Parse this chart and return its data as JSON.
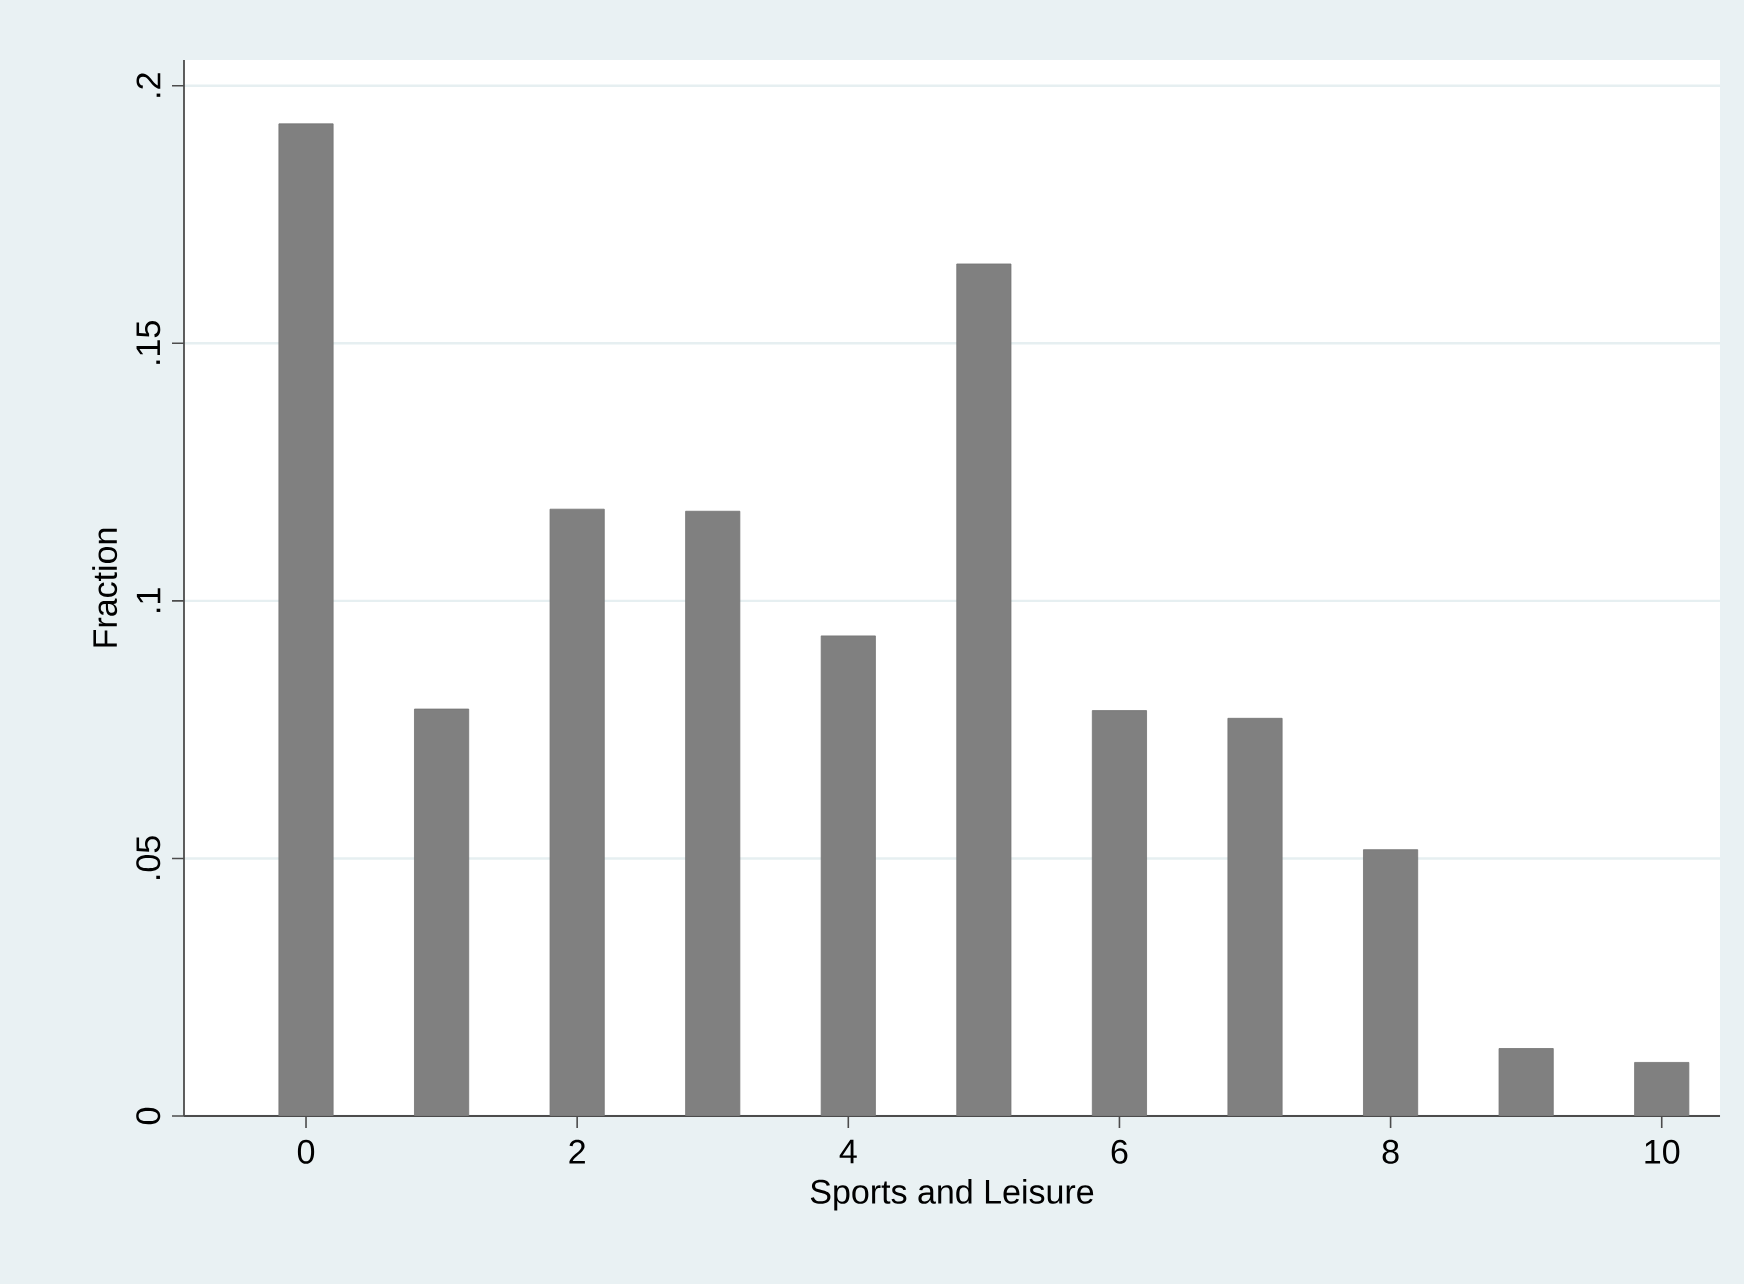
{
  "chart_data": {
    "type": "bar",
    "xlabel": "Sports and Leisure",
    "ylabel": "Fraction",
    "x": [
      0,
      1,
      2,
      3,
      4,
      5,
      6,
      7,
      8,
      9,
      10
    ],
    "values": [
      0.1926,
      0.079,
      0.1178,
      0.1174,
      0.0932,
      0.1654,
      0.0787,
      0.0772,
      0.0517,
      0.0131,
      0.0104
    ],
    "color": "#808080",
    "xlim": [
      -0.9,
      10.43
    ],
    "ylim": [
      0,
      0.205
    ],
    "xticks": [
      0,
      2,
      4,
      6,
      8,
      10
    ],
    "yticks": [
      0,
      {
        "value": 0.05,
        "label": ".05"
      },
      {
        "value": 0.1,
        "label": ".1"
      },
      {
        "value": 0.15,
        "label": ".15"
      },
      {
        "value": 0.2,
        "label": ".2"
      }
    ],
    "grid": "y"
  }
}
